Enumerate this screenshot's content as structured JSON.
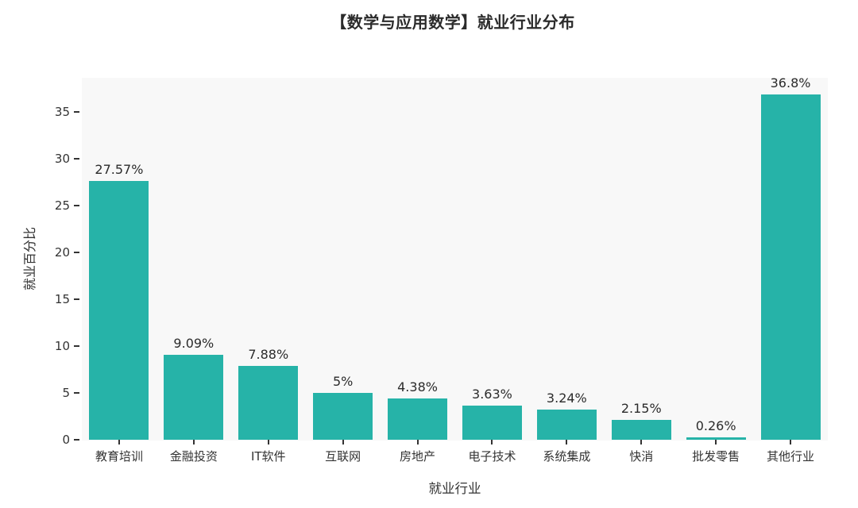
{
  "chart_data": {
    "type": "bar",
    "title": "【数学与应用数学】就业行业分布",
    "categories": [
      "教育培训",
      "金融投资",
      "IT软件",
      "互联网",
      "房地产",
      "电子技术",
      "系统集成",
      "快消",
      "批发零售",
      "其他行业"
    ],
    "values": [
      27.57,
      9.09,
      7.88,
      5,
      4.38,
      3.63,
      3.24,
      2.15,
      0.26,
      36.8
    ],
    "value_labels": [
      "27.57%",
      "9.09%",
      "7.88%",
      "5%",
      "4.38%",
      "3.63%",
      "3.24%",
      "2.15%",
      "0.26%",
      "36.8%"
    ],
    "xlabel": "就业行业",
    "ylabel": "就业百分比",
    "yticks": [
      0,
      5,
      10,
      15,
      20,
      25,
      30,
      35
    ],
    "ylim": [
      0,
      38.6
    ],
    "bar_color": "#26b3a8",
    "plot_background": "#f8f8f8",
    "grid": false,
    "legend": false
  }
}
